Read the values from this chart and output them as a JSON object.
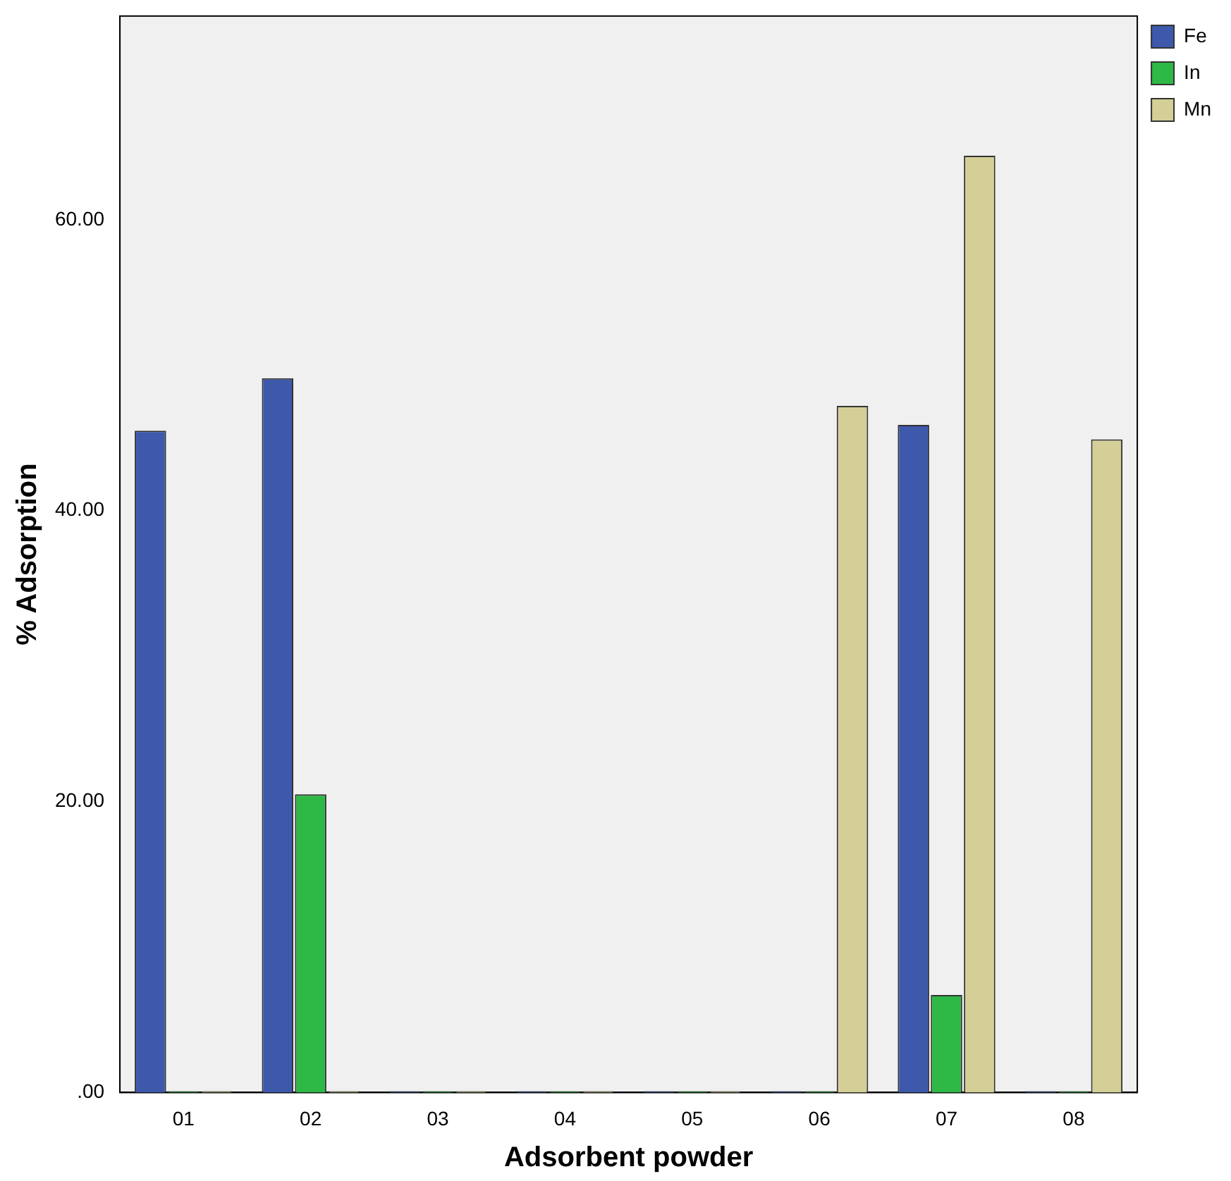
{
  "chart_data": {
    "type": "bar",
    "xlabel": "Adsorbent powder",
    "ylabel": "% Adsorption",
    "categories": [
      "01",
      "02",
      "03",
      "04",
      "05",
      "06",
      "07",
      "08"
    ],
    "series": [
      {
        "name": "Fe",
        "color": "#3e58ac",
        "values": [
          45.5,
          49.1,
          0,
          0,
          0,
          0,
          45.9,
          0
        ]
      },
      {
        "name": "In",
        "color": "#2eb845",
        "values": [
          0,
          20.5,
          0,
          0,
          0,
          0,
          6.7,
          0
        ]
      },
      {
        "name": "Mn",
        "color": "#d4cf96",
        "values": [
          0,
          0,
          0,
          0,
          0,
          47.2,
          64.4,
          44.9
        ]
      }
    ],
    "ylim": [
      0,
      74
    ],
    "yticks": [
      {
        "value": 0,
        "label": ".00"
      },
      {
        "value": 20,
        "label": "20.00"
      },
      {
        "value": 40,
        "label": "40.00"
      },
      {
        "value": 60,
        "label": "60.00"
      }
    ],
    "grid": false,
    "legend": "top right"
  }
}
